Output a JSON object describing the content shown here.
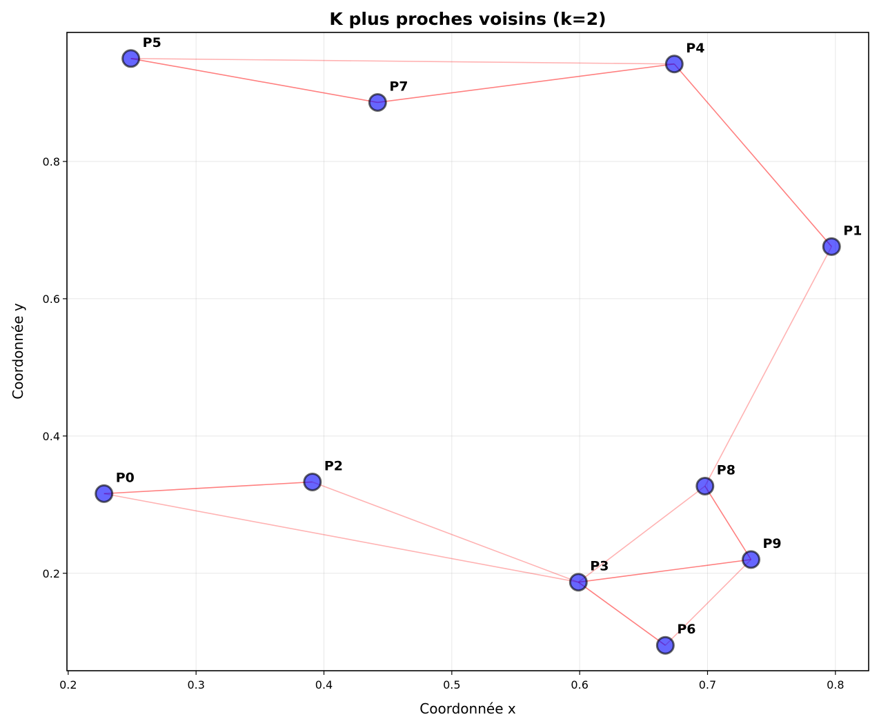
{
  "chart_data": {
    "type": "scatter",
    "title": "K plus proches voisins (k=2)",
    "xlabel": "Coordonnée x",
    "ylabel": "Coordonnée y",
    "xlim": [
      0.199,
      0.826
    ],
    "ylim": [
      0.058,
      0.988
    ],
    "xticks": [
      0.2,
      0.3,
      0.4,
      0.5,
      0.6,
      0.7,
      0.8
    ],
    "xtick_labels": [
      "0.2",
      "0.3",
      "0.4",
      "0.5",
      "0.6",
      "0.7",
      "0.8"
    ],
    "yticks": [
      0.2,
      0.4,
      0.6,
      0.8
    ],
    "ytick_labels": [
      "0.2",
      "0.4",
      "0.6",
      "0.8"
    ],
    "grid": true,
    "point_color": "#0000ff",
    "edge_color": "#ff0000",
    "points": [
      {
        "label": "P0",
        "x": 0.228,
        "y": 0.316
      },
      {
        "label": "P1",
        "x": 0.797,
        "y": 0.676
      },
      {
        "label": "P2",
        "x": 0.391,
        "y": 0.333
      },
      {
        "label": "P3",
        "x": 0.599,
        "y": 0.187
      },
      {
        "label": "P4",
        "x": 0.674,
        "y": 0.942
      },
      {
        "label": "P5",
        "x": 0.249,
        "y": 0.95
      },
      {
        "label": "P6",
        "x": 0.667,
        "y": 0.095
      },
      {
        "label": "P7",
        "x": 0.442,
        "y": 0.886
      },
      {
        "label": "P8",
        "x": 0.698,
        "y": 0.327
      },
      {
        "label": "P9",
        "x": 0.734,
        "y": 0.22
      }
    ],
    "edges": [
      {
        "from": "P0",
        "to": "P2",
        "mutual": true
      },
      {
        "from": "P0",
        "to": "P3",
        "mutual": false
      },
      {
        "from": "P2",
        "to": "P3",
        "mutual": false
      },
      {
        "from": "P1",
        "to": "P4",
        "mutual": true
      },
      {
        "from": "P1",
        "to": "P8",
        "mutual": false
      },
      {
        "from": "P5",
        "to": "P7",
        "mutual": true
      },
      {
        "from": "P5",
        "to": "P4",
        "mutual": false
      },
      {
        "from": "P7",
        "to": "P4",
        "mutual": true
      },
      {
        "from": "P3",
        "to": "P9",
        "mutual": true
      },
      {
        "from": "P3",
        "to": "P6",
        "mutual": true
      },
      {
        "from": "P3",
        "to": "P8",
        "mutual": false
      },
      {
        "from": "P8",
        "to": "P9",
        "mutual": true
      },
      {
        "from": "P6",
        "to": "P9",
        "mutual": false
      }
    ]
  }
}
